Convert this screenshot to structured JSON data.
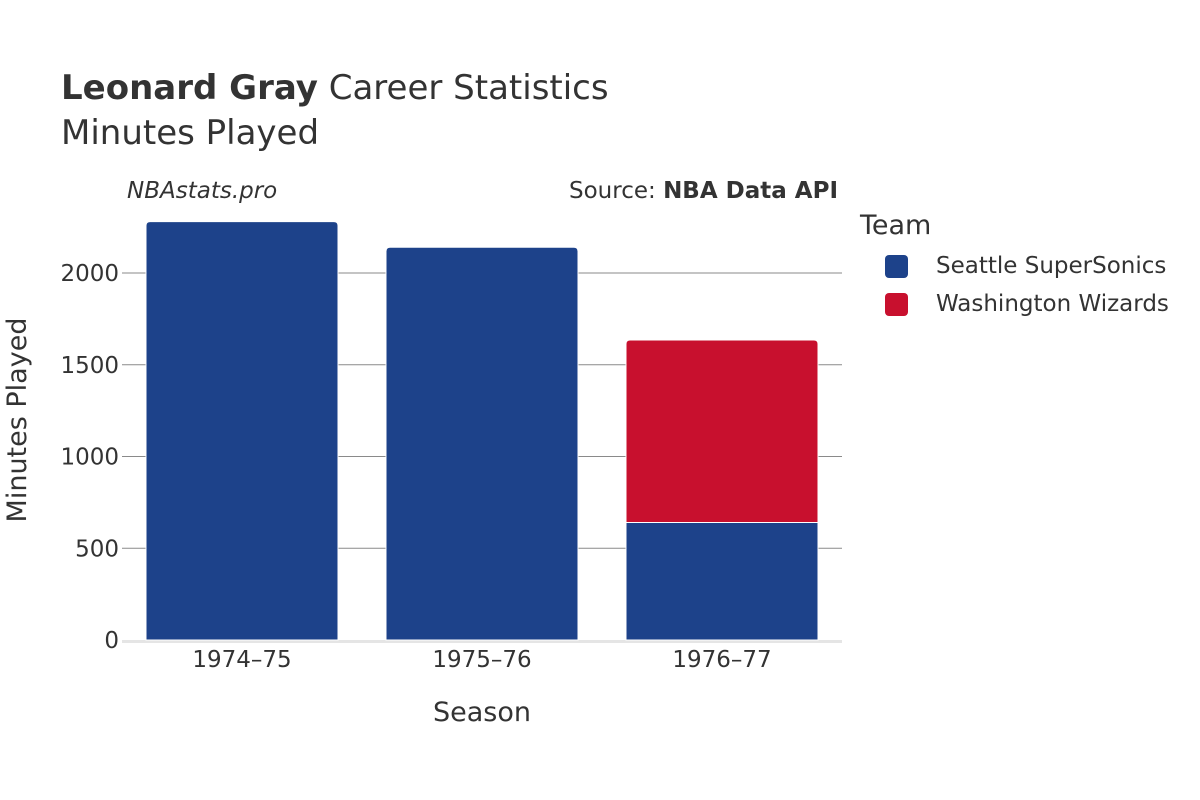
{
  "header": {
    "player": "Leonard Gray",
    "title_rest": "Career Statistics",
    "subtitle": "Minutes Played",
    "watermark": "NBAstats.pro",
    "source_prefix": "Source: ",
    "source_name": "NBA Data API"
  },
  "legend": {
    "title": "Team",
    "items": [
      {
        "label": "Seattle SuperSonics",
        "color": "#1D428A"
      },
      {
        "label": "Washington Wizards",
        "color": "#C8102E"
      }
    ]
  },
  "chart_data": {
    "type": "bar",
    "stacked": true,
    "categories": [
      "1974–75",
      "1975–76",
      "1976–77"
    ],
    "series": [
      {
        "name": "Seattle SuperSonics",
        "color": "#1D428A",
        "values": [
          2280,
          2140,
          640
        ]
      },
      {
        "name": "Washington Wizards",
        "color": "#C8102E",
        "values": [
          0,
          0,
          995
        ]
      }
    ],
    "xlabel": "Season",
    "ylabel": "Minutes Played",
    "ylim": [
      0,
      2300
    ],
    "yticks": [
      0,
      500,
      1000,
      1500,
      2000
    ],
    "grid": true,
    "legend_position": "right"
  }
}
